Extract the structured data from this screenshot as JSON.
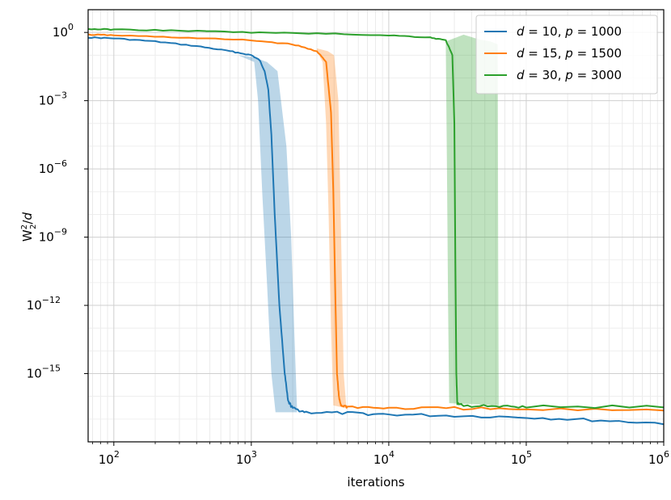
{
  "chart_data": {
    "type": "line",
    "title": "",
    "xlabel": "iterations",
    "ylabel": "W²₂/d",
    "x_scale": "log",
    "y_scale": "log",
    "xlim": [
      65,
      1000000
    ],
    "ylim": [
      1e-18,
      10
    ],
    "x_ticks": [
      {
        "value": 100,
        "base": "10",
        "exp": "2"
      },
      {
        "value": 1000,
        "base": "10",
        "exp": "3"
      },
      {
        "value": 10000,
        "base": "10",
        "exp": "4"
      },
      {
        "value": 100000,
        "base": "10",
        "exp": "5"
      },
      {
        "value": 1000000,
        "base": "10",
        "exp": "6"
      }
    ],
    "y_ticks": [
      {
        "value": 1,
        "base": "10",
        "exp": "0"
      },
      {
        "value": 0.001,
        "base": "10",
        "exp": "−3"
      },
      {
        "value": 1e-06,
        "base": "10",
        "exp": "−6"
      },
      {
        "value": 1e-09,
        "base": "10",
        "exp": "−9"
      },
      {
        "value": 1e-12,
        "base": "10",
        "exp": "−12"
      },
      {
        "value": 1e-15,
        "base": "10",
        "exp": "−15"
      }
    ],
    "grid": true,
    "legend_position": "top-right",
    "series": [
      {
        "name": "d = 10, p = 1000",
        "legend_parts": [
          "d",
          " = 10, ",
          "p",
          " = 1000"
        ],
        "color": "#1f77b4",
        "points": [
          [
            65,
            0.6
          ],
          [
            100,
            0.55
          ],
          [
            200,
            0.4
          ],
          [
            400,
            0.25
          ],
          [
            700,
            0.15
          ],
          [
            1000,
            0.1
          ],
          [
            1150,
            0.06
          ],
          [
            1250,
            0.02
          ],
          [
            1330,
            0.003
          ],
          [
            1400,
            3e-05
          ],
          [
            1480,
            1e-08
          ],
          [
            1600,
            1e-12
          ],
          [
            1750,
            1e-15
          ],
          [
            1850,
            6e-17
          ],
          [
            2000,
            3e-17
          ],
          [
            2500,
            2e-17
          ],
          [
            5000,
            1.8e-17
          ],
          [
            10000,
            1.6e-17
          ],
          [
            30000,
            1.4e-17
          ],
          [
            100000,
            1.2e-17
          ],
          [
            300000,
            9e-18
          ],
          [
            1000000,
            6.5e-18
          ]
        ],
        "band_upper": [
          [
            800,
            0.1
          ],
          [
            1050,
            0.08
          ],
          [
            1300,
            0.05
          ],
          [
            1550,
            0.02
          ],
          [
            1800,
            1e-05
          ],
          [
            1950,
            1e-09
          ],
          [
            2050,
            1e-13
          ],
          [
            2150,
            3e-17
          ]
        ],
        "band_lower": [
          [
            800,
            0.1
          ],
          [
            1050,
            0.05
          ],
          [
            1120,
            0.001
          ],
          [
            1200,
            1e-07
          ],
          [
            1300,
            1e-11
          ],
          [
            1400,
            1e-15
          ],
          [
            1500,
            2e-17
          ],
          [
            2150,
            2e-17
          ]
        ]
      },
      {
        "name": "d = 15, p = 1500",
        "legend_parts": [
          "d",
          " = 15, ",
          "p",
          " = 1500"
        ],
        "color": "#ff7f0e",
        "points": [
          [
            65,
            0.8
          ],
          [
            100,
            0.75
          ],
          [
            300,
            0.6
          ],
          [
            1000,
            0.45
          ],
          [
            2000,
            0.3
          ],
          [
            3000,
            0.15
          ],
          [
            3500,
            0.05
          ],
          [
            3800,
            0.0003
          ],
          [
            3950,
            1e-07
          ],
          [
            4100,
            1e-12
          ],
          [
            4200,
            1e-15
          ],
          [
            4350,
            8e-17
          ],
          [
            4500,
            4e-17
          ],
          [
            5000,
            3.5e-17
          ],
          [
            10000,
            3e-17
          ],
          [
            30000,
            3e-17
          ],
          [
            100000,
            2.6e-17
          ],
          [
            1000000,
            2.6e-17
          ]
        ],
        "band_upper": [
          [
            3000,
            0.2
          ],
          [
            3600,
            0.15
          ],
          [
            4000,
            0.1
          ],
          [
            4300,
            0.001
          ],
          [
            4500,
            1e-09
          ],
          [
            4700,
            1e-15
          ],
          [
            4900,
            4e-17
          ]
        ],
        "band_lower": [
          [
            3000,
            0.15
          ],
          [
            3300,
            0.05
          ],
          [
            3500,
            0.0001
          ],
          [
            3650,
            1e-08
          ],
          [
            3800,
            1e-13
          ],
          [
            3950,
            4e-17
          ],
          [
            4900,
            3e-17
          ]
        ]
      },
      {
        "name": "d = 30, p = 3000",
        "legend_parts": [
          "d",
          " = 30, ",
          "p",
          " = 3000"
        ],
        "color": "#2ca02c",
        "points": [
          [
            65,
            1.4
          ],
          [
            100,
            1.35
          ],
          [
            300,
            1.2
          ],
          [
            1000,
            1.0
          ],
          [
            3000,
            0.9
          ],
          [
            10000,
            0.75
          ],
          [
            20000,
            0.6
          ],
          [
            26000,
            0.45
          ],
          [
            29000,
            0.1
          ],
          [
            30000,
            0.0001
          ],
          [
            30500,
            1e-10
          ],
          [
            31000,
            1e-15
          ],
          [
            31500,
            5e-17
          ],
          [
            35000,
            4e-17
          ],
          [
            60000,
            3.5e-17
          ],
          [
            100000,
            3.5e-17
          ],
          [
            1000000,
            3.5e-17
          ]
        ],
        "band_upper": [
          [
            26000,
            0.4
          ],
          [
            35000,
            0.8
          ],
          [
            45000,
            0.5
          ],
          [
            55000,
            0.4
          ],
          [
            62000,
            0.3
          ],
          [
            62500,
            1e-10
          ],
          [
            63000,
            5e-17
          ]
        ],
        "band_lower": [
          [
            26000,
            0.2
          ],
          [
            26500,
            1e-06
          ],
          [
            27000,
            1e-12
          ],
          [
            27500,
            5e-17
          ],
          [
            63000,
            4e-17
          ]
        ]
      }
    ]
  }
}
